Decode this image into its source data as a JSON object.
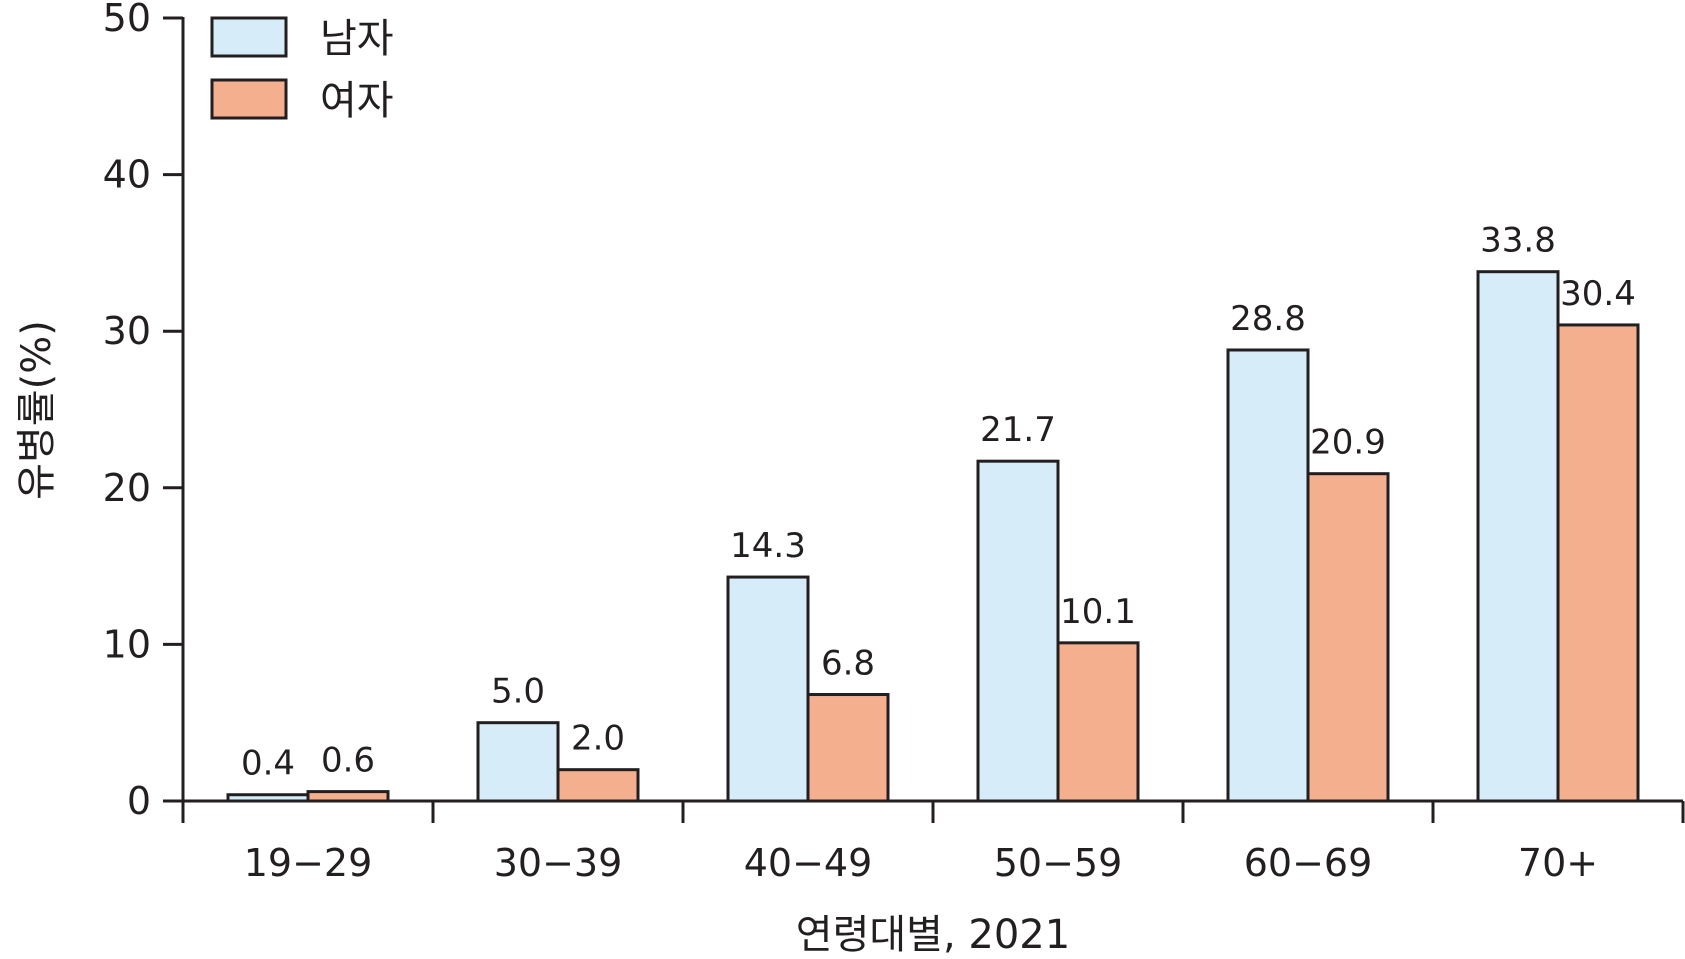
{
  "chart_data": {
    "type": "bar",
    "categories": [
      "19−29",
      "30−39",
      "40−49",
      "50−59",
      "60−69",
      "70+"
    ],
    "series": [
      {
        "name": "남자",
        "values": [
          0.4,
          5.0,
          14.3,
          21.7,
          28.8,
          33.8
        ],
        "labels": [
          "0.4",
          "5.0",
          "14.3",
          "21.7",
          "28.8",
          "33.8"
        ],
        "color": "#d6edf9"
      },
      {
        "name": "여자",
        "values": [
          0.6,
          2.0,
          6.8,
          10.1,
          20.9,
          30.4
        ],
        "labels": [
          "0.6",
          "2.0",
          "6.8",
          "10.1",
          "20.9",
          "30.4"
        ],
        "color": "#f4af8f"
      }
    ],
    "xlabel": "연령대별, 2021",
    "ylabel": "유병률(%)",
    "ylim": [
      0,
      50
    ],
    "yticks": [
      "0",
      "10",
      "20",
      "30",
      "40",
      "50"
    ],
    "grid": false,
    "legend_position": "top-left",
    "edge_color": "#231f20"
  }
}
